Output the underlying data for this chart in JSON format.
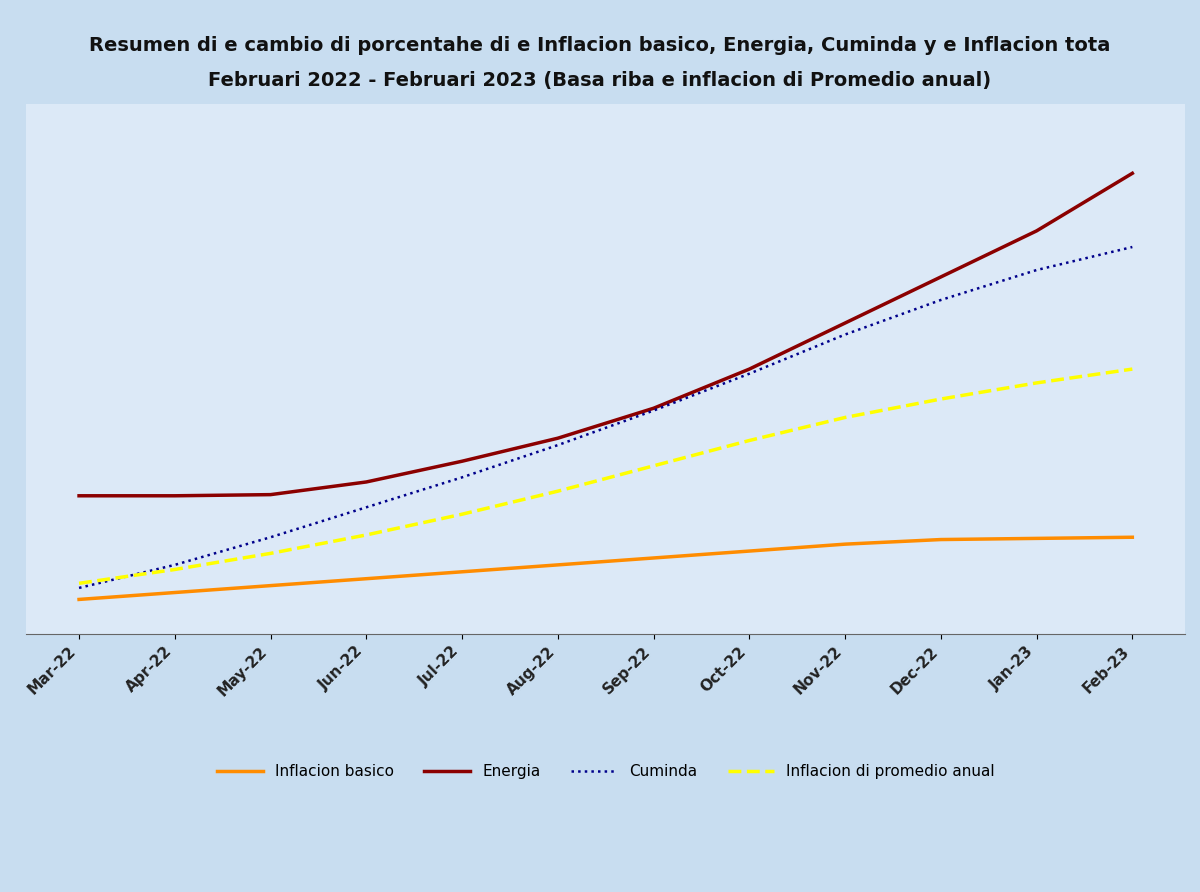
{
  "title_line1": "Resumen di e cambio di porcentahe di e Inflacion basico, Energia, Cuminda y e Inflacion tota",
  "title_line2": "Februari 2022 - Februari 2023 (Basa riba e inflacion di Promedio anual)",
  "x_labels": [
    "Mar-22",
    "Apr-22",
    "May-22",
    "Jun-22",
    "Jul-22",
    "Aug-22",
    "Sep-22",
    "Oct-22",
    "Nov-22",
    "Dec-22",
    "Jan-23",
    "Feb-23"
  ],
  "inflacion_basico": [
    0.5,
    0.8,
    1.1,
    1.4,
    1.7,
    2.0,
    2.3,
    2.6,
    2.9,
    3.1,
    3.15,
    3.2
  ],
  "energia": [
    5.0,
    5.0,
    5.05,
    5.6,
    6.5,
    7.5,
    8.8,
    10.5,
    12.5,
    14.5,
    16.5,
    19.0
  ],
  "cuminda": [
    1.0,
    2.0,
    3.2,
    4.5,
    5.8,
    7.2,
    8.7,
    10.3,
    12.0,
    13.5,
    14.8,
    15.8
  ],
  "inflacion_promedio": [
    1.2,
    1.8,
    2.5,
    3.3,
    4.2,
    5.2,
    6.3,
    7.4,
    8.4,
    9.2,
    9.9,
    10.5
  ],
  "color_basico": "#FF8C00",
  "color_energia": "#8B0000",
  "color_cuminda": "#00008B",
  "color_promedio": "#FFFF00",
  "bg_color_top": "#dce9f7",
  "bg_outer": "#c8ddf0",
  "title_fontsize": 14,
  "legend_fontsize": 11
}
